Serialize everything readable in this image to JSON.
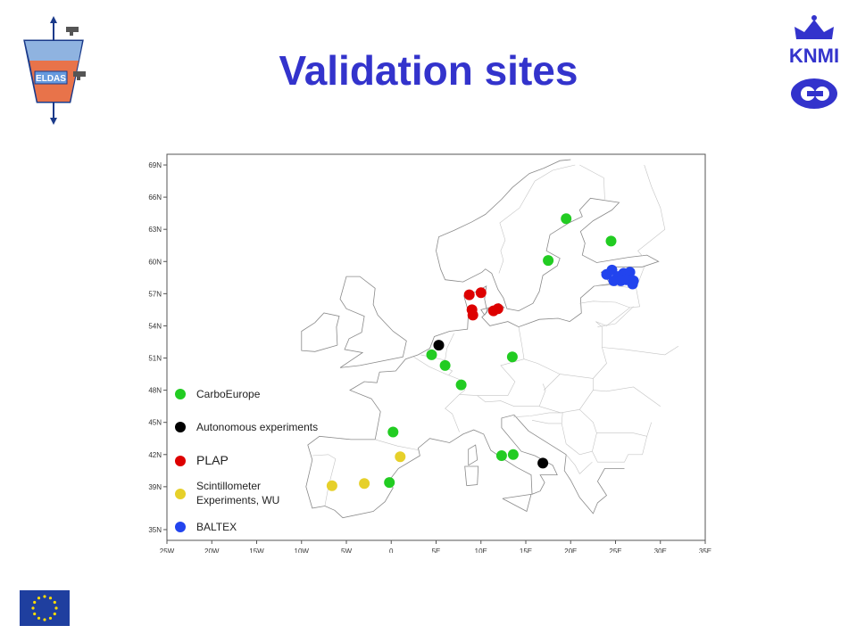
{
  "title": "Validation sites",
  "brand": {
    "left_logo_text": "ELDAS",
    "right_logo_text": "KNMI"
  },
  "colors": {
    "title": "#3333cc",
    "carbo": "#22cc22",
    "auto": "#000000",
    "plap": "#dd0000",
    "scint": "#e6d02a",
    "baltex": "#2244ee"
  },
  "chart_data": {
    "type": "scatter",
    "xlim": [
      -25,
      35
    ],
    "ylim": [
      34,
      70
    ],
    "x_ticks": [
      -25,
      -20,
      -15,
      -10,
      -5,
      0,
      5,
      10,
      15,
      20,
      25,
      30,
      35
    ],
    "x_tick_labels": [
      "25W",
      "20W",
      "15W",
      "10W",
      "5W",
      "0",
      "5E",
      "10E",
      "15E",
      "20E",
      "25E",
      "30E",
      "35E"
    ],
    "y_ticks": [
      35,
      39,
      42,
      45,
      48,
      51,
      54,
      57,
      60,
      63,
      66,
      69
    ],
    "y_tick_labels": [
      "35N",
      "39N",
      "42N",
      "45N",
      "48N",
      "51N",
      "54N",
      "57N",
      "60N",
      "63N",
      "66N",
      "69N"
    ],
    "legend": {
      "placement": "bottom-left",
      "entries": [
        {
          "key": "carbo",
          "label": "CarboEurope"
        },
        {
          "key": "auto",
          "label": "Autonomous experiments"
        },
        {
          "key": "plap",
          "label": "PLAP"
        },
        {
          "key": "scint",
          "label": "Scintillometer Experiments, WU"
        },
        {
          "key": "baltex",
          "label": "BALTEX"
        }
      ]
    },
    "series": [
      {
        "key": "carbo",
        "points": [
          [
            19.5,
            64.0
          ],
          [
            24.5,
            61.9
          ],
          [
            17.5,
            60.1
          ],
          [
            4.5,
            51.3
          ],
          [
            6.0,
            50.3
          ],
          [
            7.8,
            48.5
          ],
          [
            13.5,
            51.1
          ],
          [
            0.2,
            44.1
          ],
          [
            12.3,
            41.9
          ],
          [
            13.6,
            42.0
          ],
          [
            -0.2,
            39.4
          ]
        ]
      },
      {
        "key": "auto",
        "points": [
          [
            5.3,
            52.2
          ],
          [
            16.9,
            41.2
          ]
        ]
      },
      {
        "key": "plap",
        "points": [
          [
            8.7,
            56.9
          ],
          [
            10.0,
            57.1
          ],
          [
            9.0,
            55.5
          ],
          [
            9.1,
            55.0
          ],
          [
            11.4,
            55.4
          ],
          [
            11.9,
            55.6
          ]
        ]
      },
      {
        "key": "scint",
        "points": [
          [
            1.0,
            41.8
          ],
          [
            -3.0,
            39.3
          ],
          [
            -6.6,
            39.1
          ]
        ]
      },
      {
        "key": "baltex",
        "points": [
          [
            24.0,
            58.8
          ],
          [
            24.6,
            59.2
          ],
          [
            25.3,
            58.6
          ],
          [
            25.9,
            58.9
          ],
          [
            26.6,
            59.0
          ],
          [
            26.2,
            58.3
          ],
          [
            27.0,
            58.2
          ],
          [
            26.9,
            57.9
          ],
          [
            24.8,
            58.2
          ],
          [
            25.6,
            58.2
          ]
        ]
      }
    ]
  }
}
